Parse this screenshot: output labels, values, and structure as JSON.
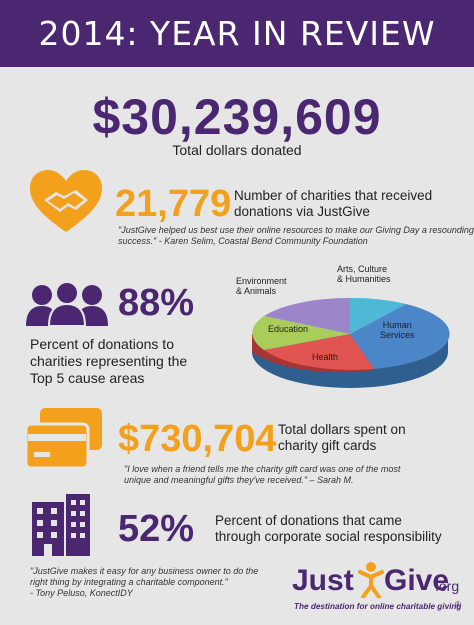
{
  "header": {
    "title": "2014: YEAR IN REVIEW"
  },
  "total": {
    "value": "$30,239,609",
    "caption": "Total dollars donated"
  },
  "charities": {
    "value": "21,779",
    "desc_line1": "Number of charities that received",
    "desc_line2": "donations via JustGive",
    "quote_line1": "\"JustGive helped us best use their online resources to make our Giving Day a resounding",
    "quote_line2": "success.\" - Karen Selim, Coastal Bend Community Foundation"
  },
  "top5": {
    "value": "88%",
    "desc_line1": "Percent of donations to",
    "desc_line2": "charities representing the",
    "desc_line3": "Top 5 cause areas"
  },
  "pie": {
    "labels": {
      "environment_line1": "Environment",
      "environment_line2": "& Animals",
      "arts_line1": "Arts, Culture",
      "arts_line2": "& Humanities",
      "education": "Education",
      "human_line1": "Human",
      "human_line2": "Services",
      "health": "Health"
    },
    "colors": {
      "human": "#4a86c8",
      "health": "#e05552",
      "education": "#a9cd5a",
      "environment": "#9c86c9",
      "arts": "#4fb8d6"
    }
  },
  "giftcards": {
    "value": "$730,704",
    "desc_line1": "Total dollars spent on",
    "desc_line2": "charity gift cards",
    "quote_line1": "\"I love when a friend tells me the charity gift card was one of the most",
    "quote_line2": "unique and meaningful gifts they've received.\" – Sarah M."
  },
  "corporate": {
    "value": "52%",
    "desc_line1": "Percent of donations that came",
    "desc_line2": "through corporate social responsibility",
    "quote_line1": "\"JustGive makes it easy for any business owner to do the",
    "quote_line2": "right thing by integrating a charitable component.\"",
    "quote_line3": "- Tony Peluso, KonectIDY"
  },
  "logo": {
    "just": "Just",
    "give": "Give",
    "org": ".org",
    "tagline": "The destination for online charitable giving",
    "reg": "®"
  },
  "colors": {
    "purple": "#4a2770",
    "orange": "#f3a01c",
    "background": "#e6e6e6"
  },
  "icons": [
    "handshake-heart-icon",
    "people-group-icon",
    "credit-card-icon",
    "office-buildings-icon",
    "jumping-person-icon"
  ]
}
